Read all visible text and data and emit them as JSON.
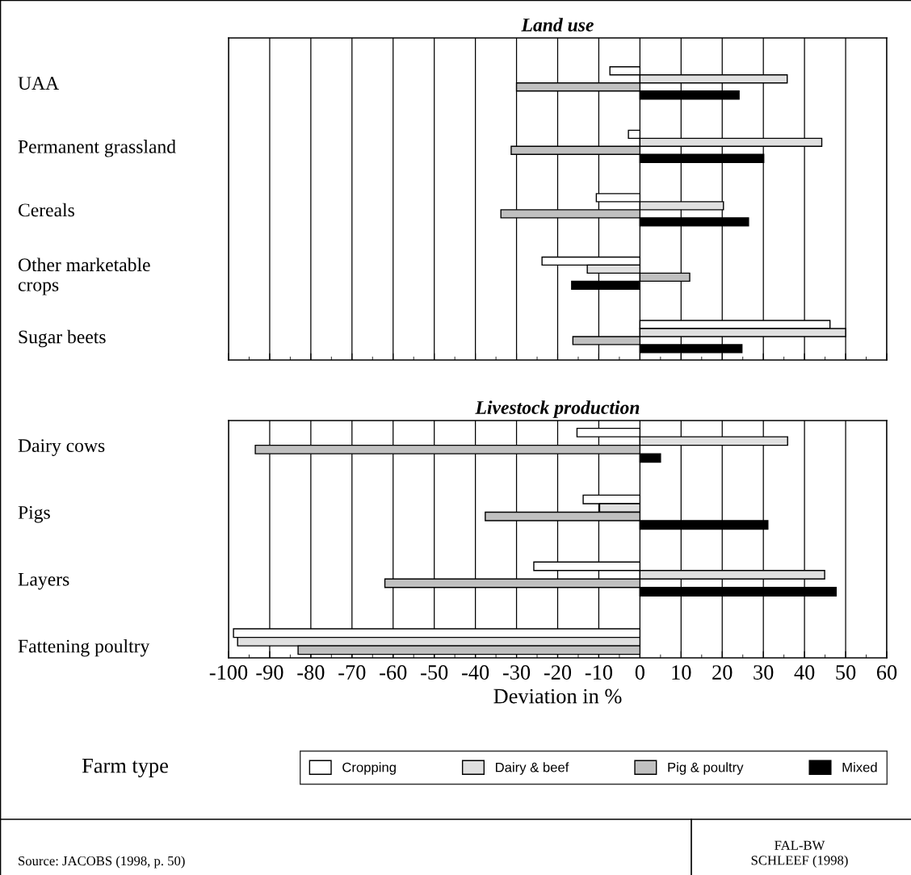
{
  "chart_data": [
    {
      "type": "bar",
      "orientation": "horizontal",
      "title": "Land use",
      "categories": [
        "UAA",
        "Permanent grassland",
        "Cereals",
        "Other marketable\ncrops",
        "Sugar beets"
      ],
      "series": [
        {
          "name": "Cropping",
          "color": "#ffffff",
          "values": [
            -7.3,
            -2.8,
            -10.6,
            -23.8,
            46.2
          ]
        },
        {
          "name": "Dairy & beef",
          "color": "#e0e0e0",
          "values": [
            35.8,
            44.2,
            20.3,
            -12.8,
            50
          ]
        },
        {
          "name": "Pig & poultry",
          "color": "#c0c0c0",
          "values": [
            -30,
            -31.3,
            -33.8,
            12.1,
            -16.3
          ]
        },
        {
          "name": "Mixed",
          "color": "#000000",
          "values": [
            24.1,
            30.1,
            26.4,
            -16.6,
            24.8
          ]
        }
      ],
      "xlim": [
        -100,
        60
      ],
      "xticks": [
        -100,
        -90,
        -80,
        -70,
        -60,
        -50,
        -40,
        -30,
        -20,
        -10,
        0,
        10,
        20,
        30,
        40,
        50,
        60
      ],
      "grid": "x",
      "tick_labels": "y",
      "legend": "bottom",
      "legend_title": "Farm type"
    },
    {
      "type": "bar",
      "orientation": "horizontal",
      "title": "Livestock production",
      "categories": [
        "Dairy cows",
        "Pigs",
        "Layers",
        "Fattening poultry"
      ],
      "series": [
        {
          "color": "#ffffff",
          "values": [
            -15.3,
            -13.8,
            -25.8,
            -98.8
          ]
        },
        {
          "color": "#e0e0e0",
          "values": [
            35.9,
            -9.8,
            44.9,
            -97.8
          ]
        },
        {
          "color": "#c0c0c0",
          "values": [
            -93.5,
            -37.6,
            -62,
            -83.1
          ]
        },
        {
          "color": "#000000",
          "values": [
            5,
            31.1,
            47.7,
            null
          ]
        }
      ],
      "xlim": [
        -100,
        60
      ],
      "xticks": [
        -100,
        -90,
        -80,
        -70,
        -60,
        -50,
        -40,
        -30,
        -20,
        -10,
        0,
        10,
        20,
        30,
        40,
        50,
        60
      ],
      "grid": "x",
      "xlabel": "Deviation in %",
      "annotations": [
        "Source: JACOBS (1998, p. 50)",
        "FAL-BW\nSCHLEEF (1998)"
      ]
    }
  ]
}
